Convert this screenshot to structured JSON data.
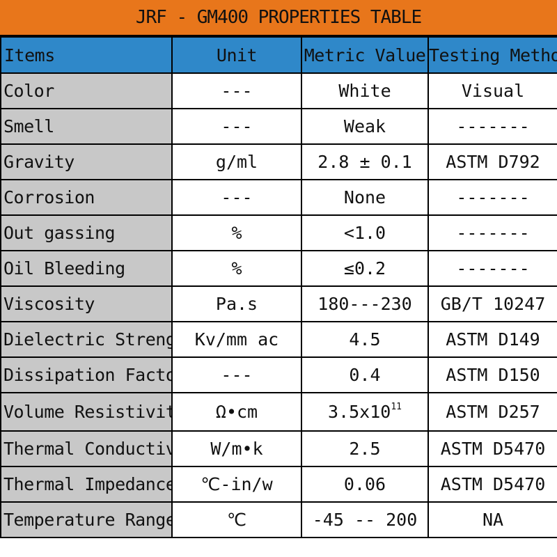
{
  "title": "JRF - GM400 PROPERTIES TABLE",
  "colors": {
    "title_bg": "#e8761b",
    "header_bg": "#2f88c9",
    "item_bg": "#c8c8c8"
  },
  "headers": [
    "Items",
    "Unit",
    "Metric Value",
    "Testing Method"
  ],
  "rows": [
    {
      "item": "Color",
      "unit": "---",
      "value": "White",
      "method": "Visual"
    },
    {
      "item": "Smell",
      "unit": "---",
      "value": "Weak",
      "method": "-------"
    },
    {
      "item": "Gravity",
      "unit": "g/ml",
      "value": "2.8 ± 0.1",
      "method": "ASTM D792"
    },
    {
      "item": "Corrosion",
      "unit": "---",
      "value": "None",
      "method": "-------"
    },
    {
      "item": "Out gassing",
      "unit": "%",
      "value": "<1.0",
      "method": "-------"
    },
    {
      "item": "Oil Bleeding",
      "unit": "%",
      "value": "≤0.2",
      "method": "-------"
    },
    {
      "item": "Viscosity",
      "unit": "Pa.s",
      "value": "180---230",
      "method": "GB/T 10247"
    },
    {
      "item": "Dielectric Strength",
      "unit": "Kv/mm ac",
      "value": "4.5",
      "method": "ASTM D149"
    },
    {
      "item": "Dissipation Factor",
      "unit": "---",
      "value": "0.4",
      "method": "ASTM D150"
    },
    {
      "item": "Volume Resistivity",
      "unit": "Ω•cm",
      "value_base": "3.5x10",
      "value_exp": "11",
      "method": "ASTM D257"
    },
    {
      "item": "Thermal Conductivity",
      "unit": "W/m•k",
      "value": "2.5",
      "method": "ASTM D5470"
    },
    {
      "item": "Thermal Impedance",
      "unit": "℃-in/w",
      "value": "0.06",
      "method": "ASTM D5470"
    },
    {
      "item": "Temperature Range",
      "unit": "℃",
      "value": "-45 -- 200",
      "method": "NA"
    }
  ]
}
